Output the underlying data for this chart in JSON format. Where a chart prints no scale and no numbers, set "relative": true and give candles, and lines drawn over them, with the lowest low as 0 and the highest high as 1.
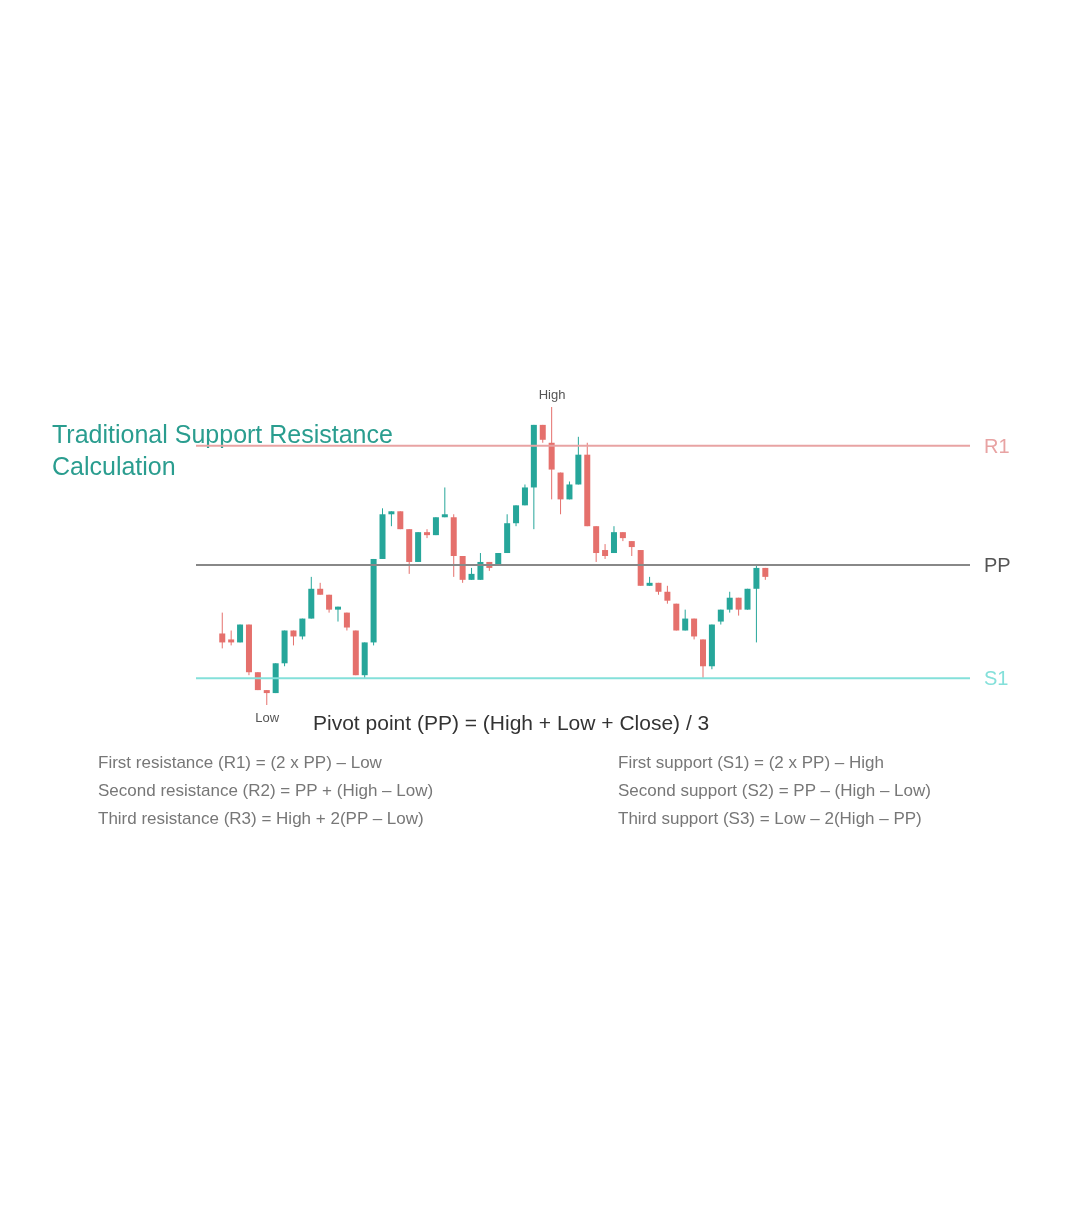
{
  "chart_data": {
    "type": "candlestick",
    "title": "Traditional Support Resistance Calculation",
    "relative": true,
    "categories": [
      null,
      null,
      null,
      null,
      null,
      null,
      null,
      null,
      null,
      null,
      null,
      null,
      null,
      null,
      null,
      null,
      null,
      null,
      null,
      null,
      null,
      null,
      null,
      null,
      null,
      null,
      null,
      null,
      null,
      null,
      null,
      null,
      null,
      null,
      null,
      null,
      null,
      null,
      null,
      null,
      null,
      null,
      null,
      null,
      null,
      null,
      null,
      null,
      null,
      null,
      null,
      null,
      null,
      null,
      null,
      null,
      null,
      null,
      null,
      null,
      null,
      null
    ],
    "colors": [
      "#e5706c",
      "#e5706c",
      "#26a69a",
      "#e5706c",
      "#e5706c",
      "#e5706c",
      "#26a69a",
      "#26a69a",
      "#e5706c",
      "#26a69a",
      "#26a69a",
      "#e5706c",
      "#e5706c",
      "#26a69a",
      "#e5706c",
      "#e5706c",
      "#26a69a",
      "#26a69a",
      "#26a69a",
      "#26a69a",
      "#e5706c",
      "#e5706c",
      "#26a69a",
      "#e5706c",
      "#26a69a",
      "#26a69a",
      "#e5706c",
      "#e5706c",
      "#26a69a",
      "#26a69a",
      "#e5706c",
      "#26a69a",
      "#26a69a",
      "#26a69a",
      "#26a69a",
      "#26a69a",
      "#e5706c",
      "#e5706c",
      "#e5706c",
      "#26a69a",
      "#26a69a",
      "#e5706c",
      "#e5706c",
      "#e5706c",
      "#26a69a",
      "#e5706c",
      "#e5706c",
      "#e5706c",
      "#26a69a",
      "#e5706c",
      "#e5706c",
      "#e5706c",
      "#26a69a",
      "#e5706c",
      "#e5706c",
      "#26a69a",
      "#26a69a",
      "#26a69a",
      "#e5706c",
      "#26a69a",
      "#26a69a",
      "#e5706c"
    ],
    "ohlc": [
      [
        0.24,
        0.31,
        0.19,
        0.21
      ],
      [
        0.22,
        0.25,
        0.2,
        0.21
      ],
      [
        0.21,
        0.27,
        0.21,
        0.27
      ],
      [
        0.27,
        0.27,
        0.1,
        0.11
      ],
      [
        0.11,
        0.11,
        0.05,
        0.05
      ],
      [
        0.05,
        0.05,
        0,
        0.04
      ],
      [
        0.04,
        0.14,
        0.04,
        0.14
      ],
      [
        0.14,
        0.25,
        0.13,
        0.25
      ],
      [
        0.25,
        0.25,
        0.2,
        0.23
      ],
      [
        0.23,
        0.29,
        0.22,
        0.29
      ],
      [
        0.29,
        0.43,
        0.29,
        0.39
      ],
      [
        0.39,
        0.41,
        0.37,
        0.37
      ],
      [
        0.37,
        0.37,
        0.31,
        0.32
      ],
      [
        0.32,
        0.33,
        0.28,
        0.33
      ],
      [
        0.31,
        0.31,
        0.25,
        0.26
      ],
      [
        0.25,
        0.25,
        0.1,
        0.1
      ],
      [
        0.1,
        0.21,
        0.09,
        0.21
      ],
      [
        0.21,
        0.49,
        0.2,
        0.49
      ],
      [
        0.49,
        0.66,
        0.49,
        0.64
      ],
      [
        0.64,
        0.65,
        0.6,
        0.65
      ],
      [
        0.65,
        0.65,
        0.59,
        0.59
      ],
      [
        0.59,
        0.59,
        0.44,
        0.48
      ],
      [
        0.48,
        0.58,
        0.48,
        0.58
      ],
      [
        0.58,
        0.59,
        0.56,
        0.57
      ],
      [
        0.57,
        0.63,
        0.57,
        0.63
      ],
      [
        0.63,
        0.73,
        0.63,
        0.64
      ],
      [
        0.63,
        0.64,
        0.43,
        0.5
      ],
      [
        0.5,
        0.5,
        0.41,
        0.42
      ],
      [
        0.42,
        0.46,
        0.42,
        0.44
      ],
      [
        0.42,
        0.51,
        0.42,
        0.48
      ],
      [
        0.48,
        0.48,
        0.45,
        0.46
      ],
      [
        0.47,
        0.51,
        0.47,
        0.51
      ],
      [
        0.51,
        0.64,
        0.51,
        0.61
      ],
      [
        0.61,
        0.67,
        0.6,
        0.67
      ],
      [
        0.67,
        0.74,
        0.67,
        0.73
      ],
      [
        0.73,
        0.94,
        0.59,
        0.94
      ],
      [
        0.94,
        0.94,
        0.88,
        0.89
      ],
      [
        0.88,
        1,
        0.69,
        0.79
      ],
      [
        0.78,
        0.78,
        0.64,
        0.69
      ],
      [
        0.69,
        0.75,
        0.69,
        0.74
      ],
      [
        0.74,
        0.9,
        0.74,
        0.84
      ],
      [
        0.84,
        0.88,
        0.6,
        0.6
      ],
      [
        0.6,
        0.6,
        0.48,
        0.51
      ],
      [
        0.52,
        0.54,
        0.49,
        0.5
      ],
      [
        0.51,
        0.6,
        0.51,
        0.58
      ],
      [
        0.58,
        0.58,
        0.55,
        0.56
      ],
      [
        0.55,
        0.55,
        0.5,
        0.53
      ],
      [
        0.52,
        0.52,
        0.4,
        0.4
      ],
      [
        0.4,
        0.43,
        0.4,
        0.41
      ],
      [
        0.41,
        0.41,
        0.37,
        0.38
      ],
      [
        0.38,
        0.4,
        0.34,
        0.35
      ],
      [
        0.34,
        0.34,
        0.25,
        0.25
      ],
      [
        0.25,
        0.32,
        0.25,
        0.29
      ],
      [
        0.29,
        0.29,
        0.22,
        0.23
      ],
      [
        0.22,
        0.22,
        0.09,
        0.13
      ],
      [
        0.13,
        0.27,
        0.12,
        0.27
      ],
      [
        0.28,
        0.32,
        0.27,
        0.32
      ],
      [
        0.32,
        0.38,
        0.31,
        0.36
      ],
      [
        0.36,
        0.36,
        0.3,
        0.32
      ],
      [
        0.32,
        0.39,
        0.32,
        0.39
      ],
      [
        0.39,
        0.47,
        0.21,
        0.46
      ],
      [
        0.46,
        0.46,
        0.42,
        0.43
      ]
    ],
    "ref_lines": [
      {
        "axis": "y",
        "value": 0.87,
        "label": "R1",
        "color": "#e8a3a3"
      },
      {
        "axis": "y",
        "value": 0.47,
        "label": "PP",
        "color": "#888888"
      },
      {
        "axis": "y",
        "value": 0.09,
        "label": "S1",
        "color": "#84e0da"
      }
    ],
    "annotations": [
      {
        "text": "High",
        "y": 1
      },
      {
        "text": "Low",
        "y": 0
      },
      "Pivot point (PP) = (High + Low + Close) / 3",
      "First resistance (R1) = (2 x PP) – Low",
      "Second resistance (R2) = PP + (High – Low)",
      "Third resistance (R3) = High + 2(PP – Low)",
      "First support (S1) = (2 x PP) – High",
      "Second support (S2) = PP – (High – Low)",
      "Third support (S3) = Low – 2(High – PP)"
    ],
    "legend": false,
    "grid": false
  }
}
